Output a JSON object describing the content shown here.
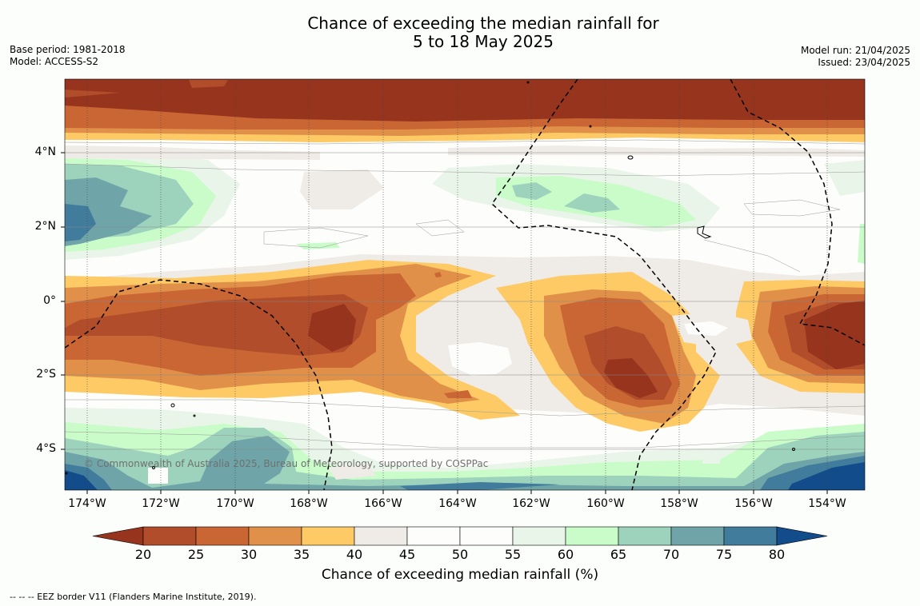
{
  "title": {
    "line1": "Chance of exceeding the median rainfall for",
    "line2": "5 to 18 May 2025"
  },
  "meta": {
    "base_period": "Base period: 1981-2018",
    "model": "Model: ACCESS-S2",
    "model_run": "Model run: 21/04/2025",
    "issued": "Issued: 23/04/2025"
  },
  "map": {
    "lat_labels": [
      "4°N",
      "2°N",
      "0°",
      "2°S",
      "4°S"
    ],
    "lon_labels": [
      "174°W",
      "172°W",
      "170°W",
      "168°W",
      "166°W",
      "164°W",
      "162°W",
      "160°W",
      "158°W",
      "156°W",
      "154°W"
    ],
    "copyright": "© Commonwealth of Australia 2025, Bureau of Meteorology, supported by COSPPac"
  },
  "colorbar": {
    "ticks": [
      "20",
      "25",
      "30",
      "35",
      "40",
      "45",
      "50",
      "55",
      "60",
      "65",
      "70",
      "75",
      "80"
    ],
    "colors": [
      "#97341e",
      "#b14d2a",
      "#c96633",
      "#e09048",
      "#fdca66",
      "#efebe6",
      "#fdfefb",
      "#fdfefb",
      "#eaf5e9",
      "#c9fcc9",
      "#9dd2bc",
      "#6fa5a8",
      "#427c9d",
      "#134c8b"
    ],
    "label": "Chance of exceeding median rainfall (%)"
  },
  "footnote": "--  --  -- EEZ border V11 (Flanders Marine Institute, 2019)."
}
